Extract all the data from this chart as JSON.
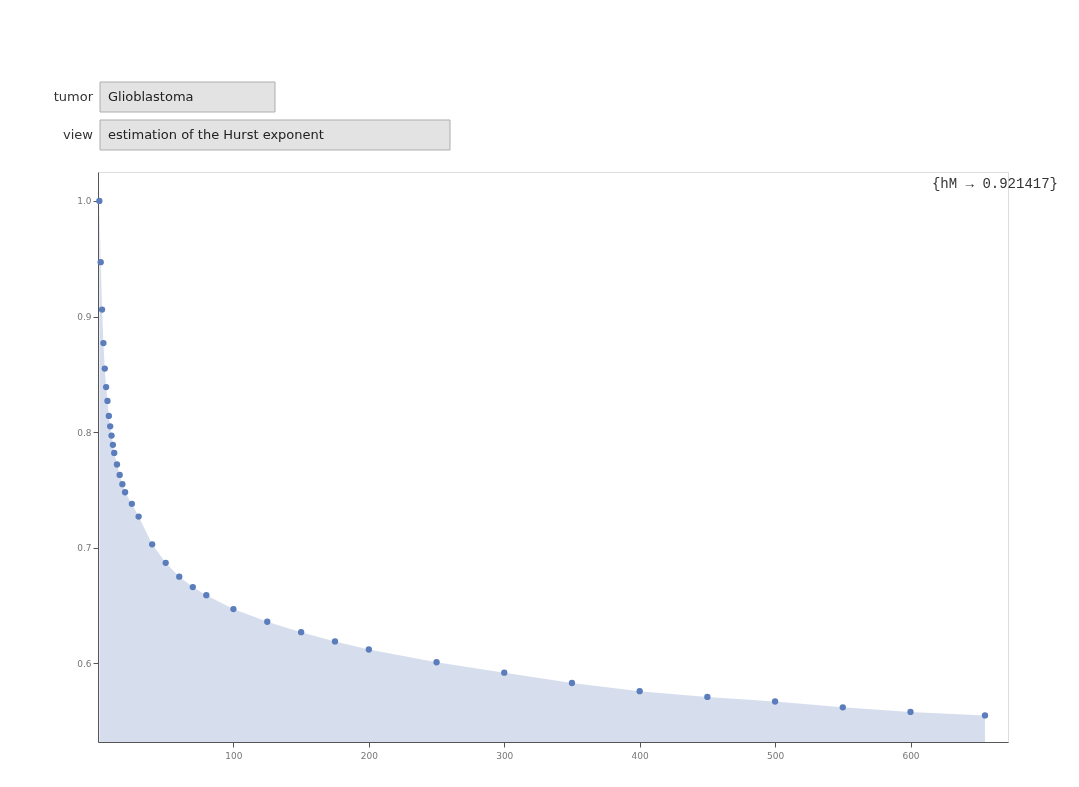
{
  "chart_data": {
    "type": "area",
    "marker": "circle",
    "grid": false,
    "annotations": [
      "tumor",
      "Glioblastoma",
      "view",
      "estimation of the Hurst exponent",
      "{hM → 0.921417}"
    ],
    "x": [
      1,
      2,
      3,
      4,
      5,
      6,
      7,
      8,
      9,
      10,
      11,
      12,
      14,
      16,
      18,
      20,
      25,
      30,
      40,
      50,
      60,
      70,
      80,
      100,
      125,
      150,
      175,
      200,
      250,
      300,
      350,
      400,
      450,
      500,
      550,
      600,
      655
    ],
    "series": [
      {
        "color": "#5b7dbb",
        "values": [
          1.0,
          0.947,
          0.906,
          0.877,
          0.855,
          0.839,
          0.827,
          0.814,
          0.805,
          0.797,
          0.789,
          0.782,
          0.772,
          0.763,
          0.755,
          0.748,
          0.738,
          0.727,
          0.703,
          0.687,
          0.675,
          0.666,
          0.659,
          0.647,
          0.636,
          0.627,
          0.619,
          0.612,
          0.601,
          0.592,
          0.583,
          0.576,
          0.571,
          0.567,
          0.562,
          0.558,
          0.555
        ]
      }
    ],
    "xlim": [
      0,
      672
    ],
    "ylim": [
      0.532,
      1.025
    ],
    "xticks": [
      100,
      200,
      300,
      400,
      500,
      600
    ],
    "yticks": [
      0.6,
      0.7,
      0.8,
      0.9,
      {
        "value": 1.0,
        "label": "1.0"
      }
    ]
  }
}
